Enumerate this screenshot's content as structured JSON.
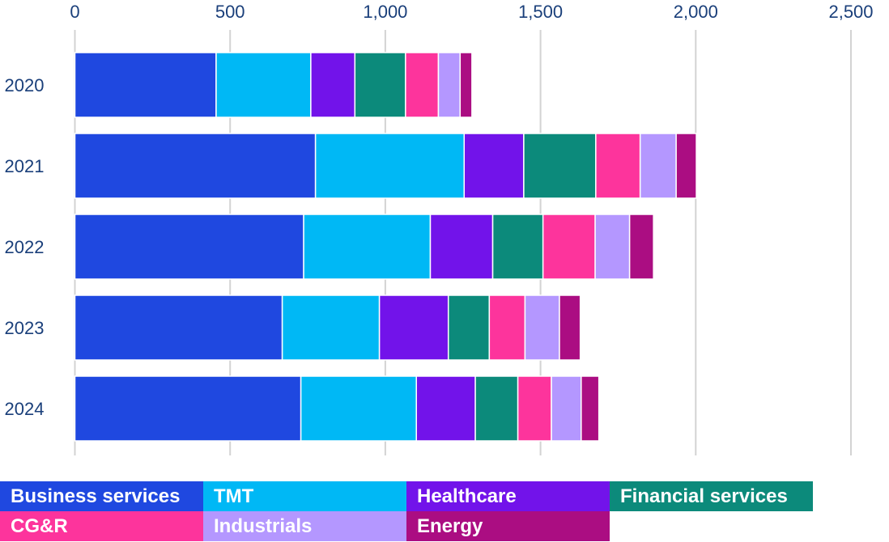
{
  "chart_data": {
    "type": "bar",
    "orientation": "horizontal",
    "stacked": true,
    "title": "",
    "xlabel": "",
    "ylabel": "",
    "xlim": [
      0,
      2500
    ],
    "x_ticks": [
      0,
      500,
      1000,
      1500,
      2000,
      2500
    ],
    "x_tick_labels": [
      "0",
      "500",
      "1,000",
      "1,500",
      "2,000",
      "2,500"
    ],
    "x_axis_position": "top",
    "grid": true,
    "categories": [
      "2020",
      "2021",
      "2022",
      "2023",
      "2024"
    ],
    "series": [
      {
        "name": "Business services",
        "color": "#1f48e0",
        "values": [
          455,
          775,
          737,
          668,
          728
        ]
      },
      {
        "name": "TMT",
        "color": "#00b8f5",
        "values": [
          305,
          479,
          408,
          313,
          372
        ]
      },
      {
        "name": "Healthcare",
        "color": "#7213ea",
        "values": [
          142,
          192,
          201,
          222,
          190
        ]
      },
      {
        "name": "Financial services",
        "color": "#0c8a7b",
        "values": [
          163,
          232,
          162,
          132,
          137
        ]
      },
      {
        "name": "CG&R",
        "color": "#fd349c",
        "values": [
          106,
          143,
          168,
          115,
          108
        ]
      },
      {
        "name": "Industrials",
        "color": "#b497ff",
        "values": [
          70,
          116,
          111,
          111,
          96
        ]
      },
      {
        "name": "Energy",
        "color": "#ab0d82",
        "values": [
          38,
          65,
          77,
          67,
          57
        ]
      }
    ],
    "legend": {
      "placement": "bottom",
      "items": [
        "Business services",
        "TMT",
        "Healthcare",
        "Financial services",
        "CG&R",
        "Industrials",
        "Energy"
      ]
    }
  }
}
